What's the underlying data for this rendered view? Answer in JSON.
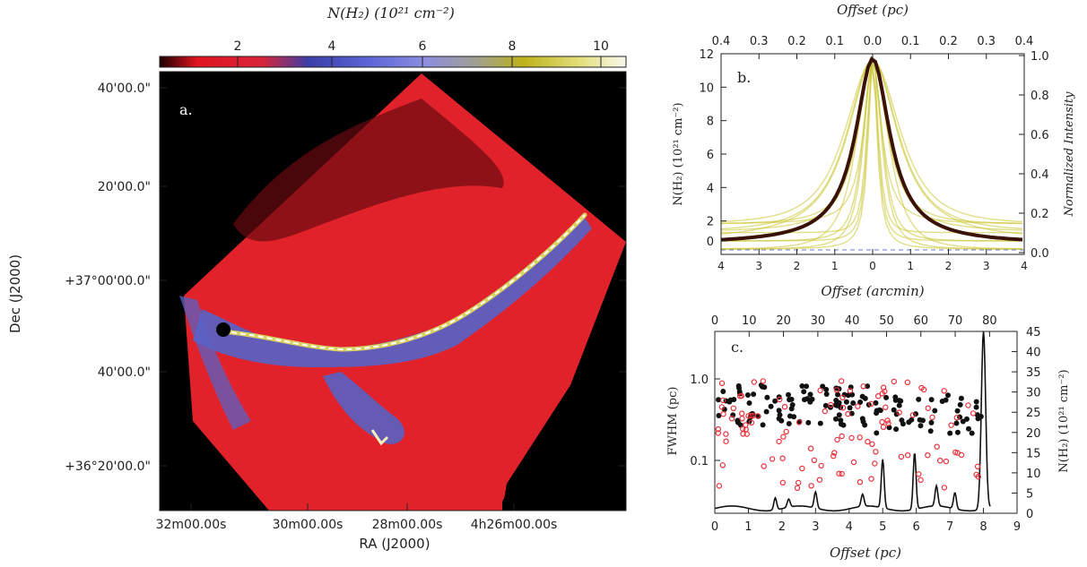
{
  "panel_a": {
    "letter": "a.",
    "colorbar": {
      "label": "N(H₂) (10²¹ cm⁻²)",
      "ticks": [
        "2",
        "4",
        "6",
        "8",
        "10"
      ]
    },
    "ra_ticks": [
      "32m00.00s",
      "30m00.00s",
      "28m00.00s",
      "4h26m00.00s"
    ],
    "dec_ticks": [
      "40'00.0\"",
      "20'00.0\"",
      "+37°00'00.0\"",
      "40'00.0\"",
      "+36°20'00.0\""
    ],
    "xlabel": "RA (J2000)",
    "ylabel": "Dec (J2000)"
  },
  "panel_b": {
    "letter": "b.",
    "top_xlabel": "Offset (pc)",
    "top_ticks": [
      "0.4",
      "0.3",
      "0.2",
      "0.1",
      "0.0",
      "0.1",
      "0.2",
      "0.3",
      "0.4"
    ],
    "bottom_xlabel": "Offset (arcmin)",
    "bottom_ticks": [
      "4",
      "3",
      "2",
      "1",
      "0",
      "1",
      "2",
      "3",
      "4"
    ],
    "ylabel_left": "N(H₂) (10²¹ cm⁻²)",
    "ylabel_right": "Normalized Intensity",
    "left_ticks": [
      "0",
      "2",
      "4",
      "6",
      "8",
      "10",
      "12"
    ],
    "right_ticks": [
      "0.0",
      "0.2",
      "0.4",
      "0.6",
      "0.8",
      "1.0"
    ]
  },
  "panel_c": {
    "letter": "c.",
    "top_ticks": [
      "0",
      "10",
      "20",
      "30",
      "40",
      "50",
      "60",
      "70",
      "80"
    ],
    "bottom_ticks": [
      "0",
      "1",
      "2",
      "3",
      "4",
      "5",
      "6",
      "7",
      "8",
      "9"
    ],
    "xlabel": "Offset (pc)",
    "ylabel_left": "FWHM (pc)",
    "ylabel_right": "N(H₂) (10²¹ cm⁻²)",
    "left_ticks": [
      "1.0",
      "0.1"
    ],
    "right_ticks": [
      "0",
      "5",
      "10",
      "15",
      "20",
      "25",
      "30",
      "35",
      "40",
      "45"
    ]
  },
  "colors": {
    "map_background": "#000000",
    "map_red": "#e2222b",
    "map_blue": "#5862c4",
    "profile_mean": "#3a1205",
    "profile_individual": "#c9c228",
    "fwhm_black": "#111111",
    "fwhm_red": "#e8303a"
  }
}
